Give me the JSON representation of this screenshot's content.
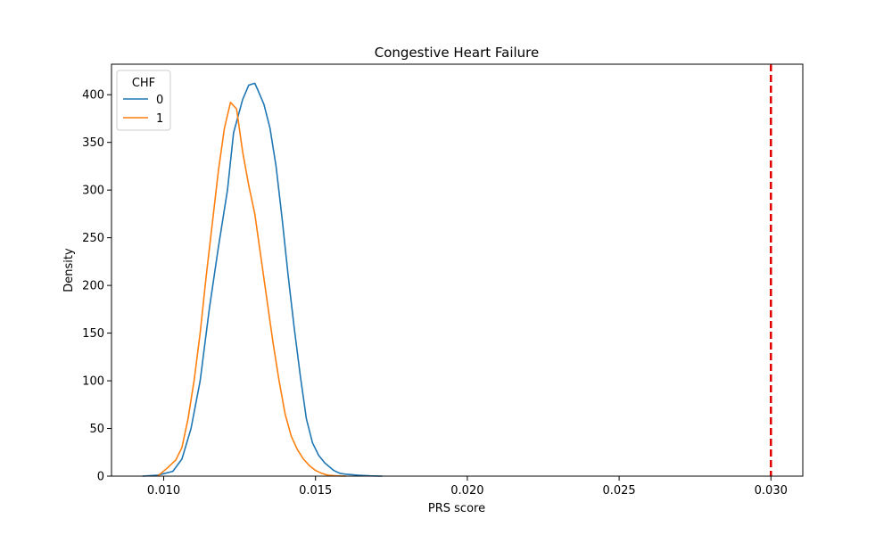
{
  "chart_data": {
    "type": "line",
    "title": "Congestive Heart Failure",
    "xlabel": "PRS score",
    "ylabel": "Density",
    "xlim": [
      0.00828,
      0.03105
    ],
    "ylim": [
      0,
      432
    ],
    "xticks": [
      0.01,
      0.015,
      0.02,
      0.025,
      0.03
    ],
    "xtick_labels": [
      "0.010",
      "0.015",
      "0.020",
      "0.025",
      "0.030"
    ],
    "yticks": [
      0,
      50,
      100,
      150,
      200,
      250,
      300,
      350,
      400
    ],
    "ytick_labels": [
      "0",
      "50",
      "100",
      "150",
      "200",
      "250",
      "300",
      "350",
      "400"
    ],
    "grid": false,
    "legend": {
      "title": "CHF",
      "placement": "upper-left"
    },
    "reference_line": {
      "x": 0.03,
      "color": "#e00000",
      "style": "dashed"
    },
    "series": [
      {
        "name": "0",
        "color": "#1f77b4",
        "x": [
          0.0093,
          0.0098,
          0.0103,
          0.0106,
          0.0109,
          0.0112,
          0.0115,
          0.0118,
          0.0121,
          0.0123,
          0.0126,
          0.0128,
          0.013,
          0.0131,
          0.0133,
          0.0135,
          0.0137,
          0.0139,
          0.0141,
          0.0143,
          0.0145,
          0.0147,
          0.0149,
          0.0151,
          0.0153,
          0.0156,
          0.0158,
          0.016,
          0.0164,
          0.0168,
          0.0172
        ],
        "y": [
          0,
          1,
          5,
          18,
          50,
          100,
          175,
          240,
          300,
          360,
          395,
          410,
          412,
          405,
          390,
          365,
          325,
          270,
          210,
          155,
          105,
          60,
          35,
          22,
          14,
          6,
          3,
          2,
          1,
          0.3,
          0
        ]
      },
      {
        "name": "1",
        "color": "#ff7f0e",
        "x": [
          0.0098,
          0.0101,
          0.0104,
          0.0106,
          0.0108,
          0.011,
          0.0112,
          0.0114,
          0.0116,
          0.0118,
          0.012,
          0.0122,
          0.0124,
          0.0126,
          0.0128,
          0.013,
          0.0132,
          0.0134,
          0.0136,
          0.0138,
          0.014,
          0.0142,
          0.0144,
          0.0146,
          0.0148,
          0.015,
          0.0152,
          0.0154,
          0.0156,
          0.0158,
          0.016
        ],
        "y": [
          0,
          8,
          17,
          30,
          60,
          100,
          150,
          210,
          265,
          320,
          365,
          392,
          385,
          340,
          305,
          275,
          230,
          185,
          140,
          100,
          65,
          42,
          28,
          18,
          11,
          6,
          3,
          1,
          0.5,
          0.2,
          0
        ]
      }
    ]
  }
}
